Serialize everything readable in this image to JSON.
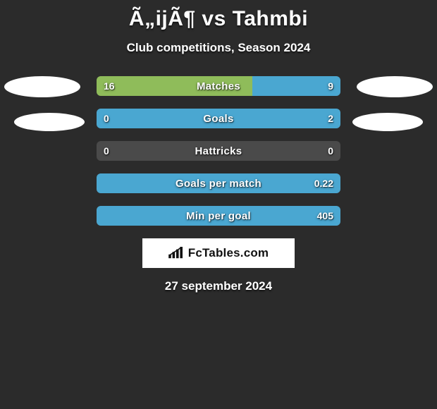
{
  "title": "Ã„ijÃ¶ vs Tahmbi",
  "subtitle": "Club competitions, Season 2024",
  "date": "27 september 2024",
  "brand": "FcTables.com",
  "colors": {
    "left": "#8fbc5a",
    "right": "#4aa7d1",
    "blank": "#4a4a4a"
  },
  "rows": [
    {
      "label": "Matches",
      "left_val": "16",
      "right_val": "9",
      "left_pct": 64,
      "right_pct": 36
    },
    {
      "label": "Goals",
      "left_val": "0",
      "right_val": "2",
      "left_pct": 0,
      "right_pct": 100
    },
    {
      "label": "Hattricks",
      "left_val": "0",
      "right_val": "0",
      "left_pct": 0,
      "right_pct": 0
    },
    {
      "label": "Goals per match",
      "left_val": "",
      "right_val": "0.22",
      "left_pct": 0,
      "right_pct": 100
    },
    {
      "label": "Min per goal",
      "left_val": "",
      "right_val": "405",
      "left_pct": 0,
      "right_pct": 100
    }
  ]
}
